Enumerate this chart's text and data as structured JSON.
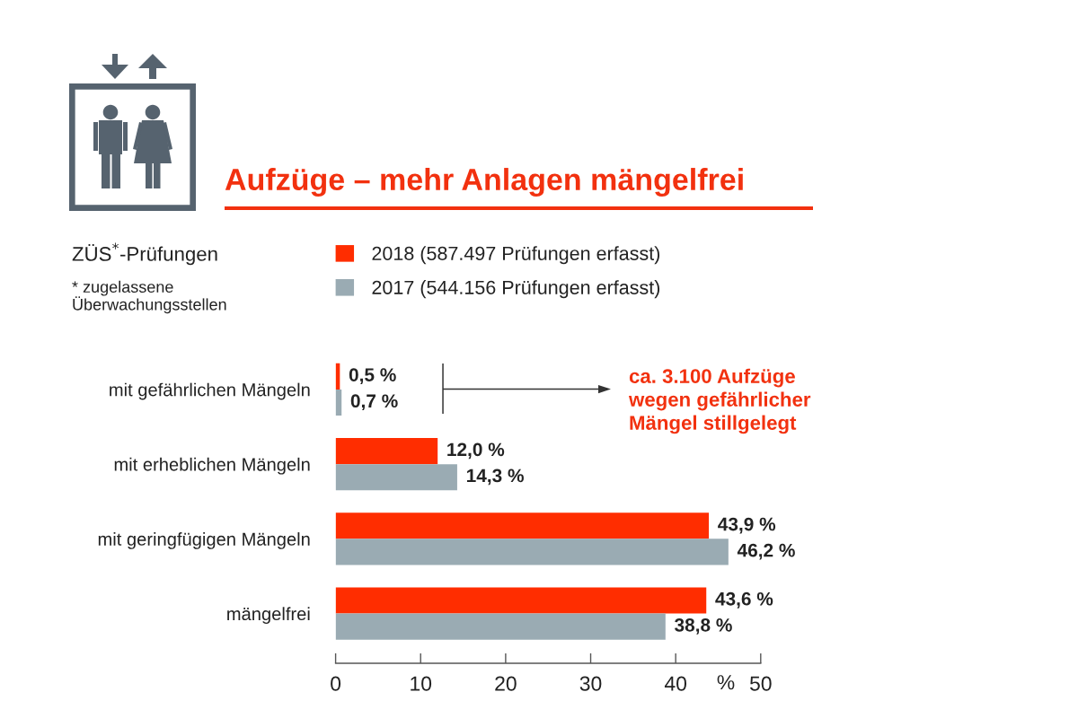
{
  "chart_data": {
    "type": "bar",
    "orientation": "horizontal",
    "title": "Aufzüge – mehr Anlagen mängelfrei",
    "xlabel": "%",
    "categories": [
      "mit gefährlichen Mängeln",
      "mit erheblichen Mängeln",
      "mit geringfügigen Mängeln",
      "mängelfrei"
    ],
    "series": [
      {
        "name": "2018 (587.497 Prüfungen erfasst)",
        "color": "#ff2d00",
        "values": [
          0.5,
          12.0,
          43.9,
          43.6
        ],
        "value_labels": [
          "0,5 %",
          "12,0 %",
          "43,9 %",
          "43,6 %"
        ]
      },
      {
        "name": "2017 (544.156 Prüfungen erfasst)",
        "color": "#9aabb3",
        "values": [
          0.7,
          14.3,
          46.2,
          38.8
        ],
        "value_labels": [
          "0,7 %",
          "14,3 %",
          "46,2 %",
          "38,8 %"
        ]
      }
    ],
    "xlim": [
      0,
      50
    ],
    "xticks": [
      0,
      10,
      20,
      30,
      40,
      50
    ],
    "legend": "top left",
    "annotations": [
      "ZÜS$^{*}$-Prüfungen",
      "* zugelassene\nÜberwachungsstellen",
      "ca. 3.100 Aufzüge\nwegen gefährlicher\nMängel stillgelegt"
    ]
  }
}
